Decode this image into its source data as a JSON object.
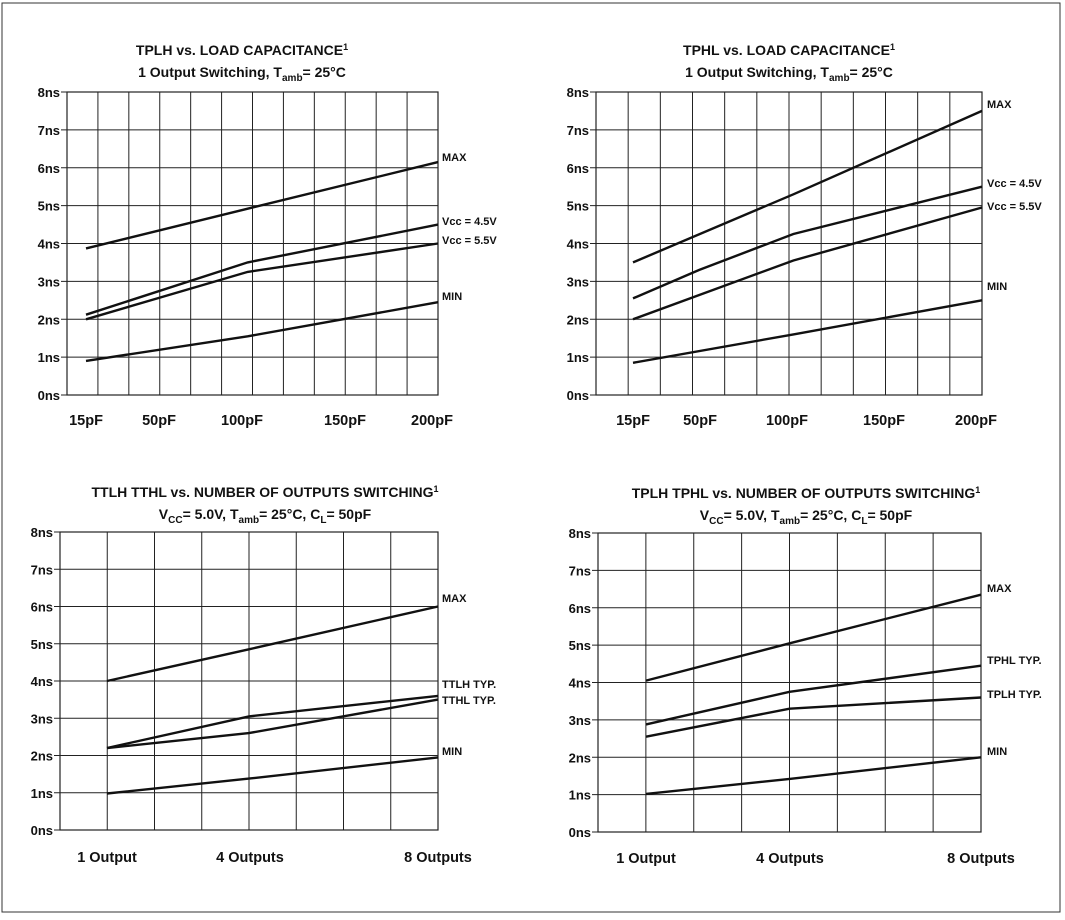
{
  "chart_data": [
    {
      "type": "line",
      "title": "TPLH vs. LOAD CAPACITANCE",
      "title_superscript": "1",
      "subtitle_parts": [
        "1 Output Switching, T",
        "amb",
        "= 25°C"
      ],
      "x_tick_labels": [
        "15pF",
        "50pF",
        "100pF",
        "150pF",
        "200pF"
      ],
      "x_tick_values": [
        15,
        50,
        100,
        150,
        200
      ],
      "xlim": [
        15,
        200
      ],
      "y_tick_labels": [
        "0ns",
        "1ns",
        "2ns",
        "3ns",
        "4ns",
        "5ns",
        "6ns",
        "7ns",
        "8ns"
      ],
      "ylim": [
        0,
        8
      ],
      "grid": true,
      "series": [
        {
          "name": "MAX",
          "x": [
            15,
            100,
            200
          ],
          "y": [
            3.87,
            4.92,
            6.15
          ]
        },
        {
          "name": "Vcc = 4.5V",
          "x": [
            15,
            100,
            200
          ],
          "y": [
            2.12,
            3.5,
            4.5
          ]
        },
        {
          "name": "Vcc = 5.5V",
          "x": [
            15,
            100,
            200
          ],
          "y": [
            2.0,
            3.25,
            4.0
          ]
        },
        {
          "name": "MIN",
          "x": [
            15,
            100,
            200
          ],
          "y": [
            0.9,
            1.55,
            2.45
          ]
        }
      ]
    },
    {
      "type": "line",
      "title": "TPHL vs. LOAD CAPACITANCE",
      "title_superscript": "1",
      "subtitle_parts": [
        "1 Output Switching, T",
        "amb",
        "= 25°C"
      ],
      "x_tick_labels": [
        "15pF",
        "50pF",
        "100pF",
        "150pF",
        "200pF"
      ],
      "x_tick_values": [
        15,
        50,
        100,
        150,
        200
      ],
      "xlim": [
        15,
        200
      ],
      "y_tick_labels": [
        "0ns",
        "1ns",
        "2ns",
        "3ns",
        "4ns",
        "5ns",
        "6ns",
        "7ns",
        "8ns"
      ],
      "ylim": [
        0,
        8
      ],
      "grid": true,
      "series": [
        {
          "name": "MAX",
          "x": [
            15,
            100,
            200
          ],
          "y": [
            3.5,
            5.3,
            7.5
          ]
        },
        {
          "name": "Vcc = 4.5V",
          "x": [
            15,
            50,
            100,
            200
          ],
          "y": [
            2.55,
            3.3,
            4.25,
            5.5
          ]
        },
        {
          "name": "Vcc = 5.5V",
          "x": [
            15,
            100,
            200
          ],
          "y": [
            2.0,
            3.55,
            4.95
          ]
        },
        {
          "name": "MIN",
          "x": [
            15,
            100,
            200
          ],
          "y": [
            0.85,
            1.6,
            2.5
          ]
        }
      ]
    },
    {
      "type": "line",
      "title": "TTLH TTHL vs. NUMBER OF OUTPUTS SWITCHING",
      "title_superscript": "1",
      "subtitle_parts": [
        "V",
        "CC",
        "= 5.0V, T",
        "amb",
        "= 25°C, C",
        "L",
        "= 50pF"
      ],
      "x_tick_labels": [
        "1 Output",
        "4 Outputs",
        "8 Outputs"
      ],
      "x_tick_values": [
        1,
        4,
        8
      ],
      "xlim": [
        1,
        8
      ],
      "y_tick_labels": [
        "0ns",
        "1ns",
        "2ns",
        "3ns",
        "4ns",
        "5ns",
        "6ns",
        "7ns",
        "8ns"
      ],
      "ylim": [
        0,
        8
      ],
      "grid": true,
      "series": [
        {
          "name": "MAX",
          "x": [
            1,
            4,
            8
          ],
          "y": [
            4.0,
            4.85,
            6.0
          ]
        },
        {
          "name": "TTLH TYP.",
          "x": [
            1,
            4,
            8
          ],
          "y": [
            2.2,
            3.05,
            3.6
          ]
        },
        {
          "name": "TTHL TYP.",
          "x": [
            1,
            4,
            8
          ],
          "y": [
            2.2,
            2.6,
            3.5
          ]
        },
        {
          "name": "MIN",
          "x": [
            1,
            4,
            8
          ],
          "y": [
            0.98,
            1.38,
            1.95
          ]
        }
      ]
    },
    {
      "type": "line",
      "title": "TPLH TPHL vs. NUMBER OF OUTPUTS SWITCHING",
      "title_superscript": "1",
      "subtitle_parts": [
        "V",
        "CC",
        "= 5.0V, T",
        "amb",
        "= 25°C, C",
        "L",
        "= 50pF"
      ],
      "x_tick_labels": [
        "1 Output",
        "4 Outputs",
        "8 Outputs"
      ],
      "x_tick_values": [
        1,
        4,
        8
      ],
      "xlim": [
        1,
        8
      ],
      "y_tick_labels": [
        "0ns",
        "1ns",
        "2ns",
        "3ns",
        "4ns",
        "5ns",
        "6ns",
        "7ns",
        "8ns"
      ],
      "ylim": [
        0,
        8
      ],
      "grid": true,
      "series": [
        {
          "name": "MAX",
          "x": [
            1,
            4,
            8
          ],
          "y": [
            4.05,
            5.05,
            6.35
          ]
        },
        {
          "name": "TPHL TYP.",
          "x": [
            1,
            4,
            8
          ],
          "y": [
            2.88,
            3.75,
            4.45
          ]
        },
        {
          "name": "TPLH TYP.",
          "x": [
            1,
            4,
            8
          ],
          "y": [
            2.55,
            3.3,
            3.6
          ]
        },
        {
          "name": "MIN",
          "x": [
            1,
            4,
            8
          ],
          "y": [
            1.02,
            1.42,
            2.0
          ]
        }
      ]
    }
  ]
}
